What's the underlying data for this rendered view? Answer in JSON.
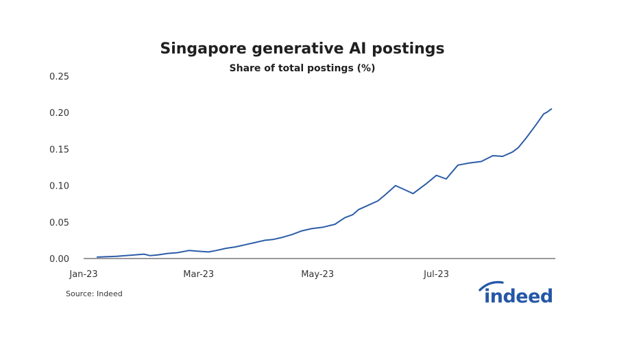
{
  "colors": {
    "line": "#2b5ca8",
    "axis": "#333333",
    "brand": "#2557a7",
    "text": "#1f1f1f"
  },
  "source": "Source: Indeed",
  "logo": {
    "text": "indeed",
    "icon": "indeed-logo-arc"
  },
  "chart_data": {
    "type": "line",
    "title": "Singapore generative AI postings",
    "subtitle": "Share of total postings (%)",
    "xlabel": "",
    "ylabel": "",
    "x_start": "2023-01-01",
    "x_end": "2023-08-31",
    "xticks": [
      {
        "date": "2023-01-01",
        "label": "Jan-23"
      },
      {
        "date": "2023-03-01",
        "label": "Mar-23"
      },
      {
        "date": "2023-05-01",
        "label": "May-23"
      },
      {
        "date": "2023-07-01",
        "label": "Jul-23"
      }
    ],
    "ylim": [
      0,
      0.25
    ],
    "yticks": [
      "0.00",
      "0.05",
      "0.10",
      "0.15",
      "0.20",
      "0.25"
    ],
    "grid": false,
    "legend": "none",
    "series": [
      {
        "x": [
          "2023-01-08",
          "2023-01-18",
          "2023-01-27",
          "2023-02-01",
          "2023-02-04",
          "2023-02-08",
          "2023-02-13",
          "2023-02-18",
          "2023-02-24",
          "2023-03-01",
          "2023-03-06",
          "2023-03-10",
          "2023-03-15",
          "2023-03-20",
          "2023-03-25",
          "2023-03-30",
          "2023-04-04",
          "2023-04-08",
          "2023-04-13",
          "2023-04-18",
          "2023-04-23",
          "2023-04-28",
          "2023-05-04",
          "2023-05-10",
          "2023-05-15",
          "2023-05-19",
          "2023-05-22",
          "2023-05-27",
          "2023-06-01",
          "2023-06-05",
          "2023-06-10",
          "2023-06-15",
          "2023-06-19",
          "2023-06-22",
          "2023-06-26",
          "2023-07-01",
          "2023-07-06",
          "2023-07-12",
          "2023-07-18",
          "2023-07-24",
          "2023-07-30",
          "2023-08-04",
          "2023-08-09",
          "2023-08-12",
          "2023-08-16",
          "2023-08-21",
          "2023-08-25",
          "2023-08-27",
          "2023-08-29"
        ],
        "values": [
          0.002,
          0.003,
          0.005,
          0.006,
          0.004,
          0.005,
          0.007,
          0.008,
          0.011,
          0.01,
          0.009,
          0.011,
          0.014,
          0.016,
          0.019,
          0.022,
          0.025,
          0.026,
          0.029,
          0.033,
          0.038,
          0.041,
          0.043,
          0.047,
          0.056,
          0.06,
          0.067,
          0.073,
          0.079,
          0.088,
          0.1,
          0.094,
          0.089,
          0.095,
          0.103,
          0.114,
          0.109,
          0.128,
          0.131,
          0.133,
          0.141,
          0.14,
          0.146,
          0.152,
          0.165,
          0.183,
          0.198,
          0.201,
          0.205
        ]
      }
    ]
  }
}
